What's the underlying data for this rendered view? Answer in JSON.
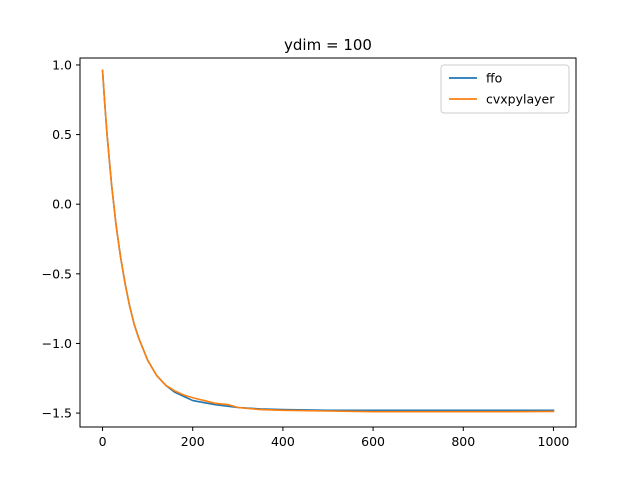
{
  "chart_data": {
    "type": "line",
    "title": "ydim = 100",
    "xlabel": "",
    "ylabel": "",
    "xlim": [
      -50,
      1050
    ],
    "ylim": [
      -1.6,
      1.05
    ],
    "xticks": [
      0,
      200,
      400,
      600,
      800,
      1000
    ],
    "xtick_labels": [
      "0",
      "200",
      "400",
      "600",
      "800",
      "1000"
    ],
    "yticks": [
      -1.5,
      -1.0,
      -0.5,
      0.0,
      0.5,
      1.0
    ],
    "ytick_labels": [
      "−1.5",
      "−1.0",
      "−0.5",
      "0.0",
      "0.5",
      "1.0"
    ],
    "grid": false,
    "legend_position": "top-right",
    "series": [
      {
        "name": "ffo",
        "color": "#1f77b4",
        "x": [
          0,
          5,
          10,
          20,
          30,
          40,
          50,
          60,
          70,
          80,
          100,
          120,
          140,
          160,
          180,
          200,
          250,
          300,
          350,
          400,
          500,
          600,
          700,
          800,
          900,
          1000
        ],
        "y": [
          0.96,
          0.72,
          0.5,
          0.14,
          -0.15,
          -0.38,
          -0.57,
          -0.73,
          -0.86,
          -0.96,
          -1.12,
          -1.23,
          -1.3,
          -1.35,
          -1.38,
          -1.41,
          -1.44,
          -1.46,
          -1.47,
          -1.475,
          -1.48,
          -1.48,
          -1.48,
          -1.48,
          -1.48,
          -1.48
        ]
      },
      {
        "name": "cvxpylayer",
        "color": "#ff7f0e",
        "x": [
          0,
          5,
          10,
          20,
          30,
          40,
          50,
          60,
          70,
          80,
          100,
          120,
          140,
          160,
          180,
          200,
          250,
          280,
          300,
          350,
          400,
          500,
          600,
          700,
          800,
          900,
          1000
        ],
        "y": [
          0.96,
          0.72,
          0.5,
          0.14,
          -0.15,
          -0.38,
          -0.57,
          -0.73,
          -0.86,
          -0.96,
          -1.12,
          -1.23,
          -1.3,
          -1.34,
          -1.37,
          -1.39,
          -1.43,
          -1.44,
          -1.46,
          -1.475,
          -1.48,
          -1.485,
          -1.49,
          -1.49,
          -1.49,
          -1.49,
          -1.488
        ]
      }
    ]
  }
}
